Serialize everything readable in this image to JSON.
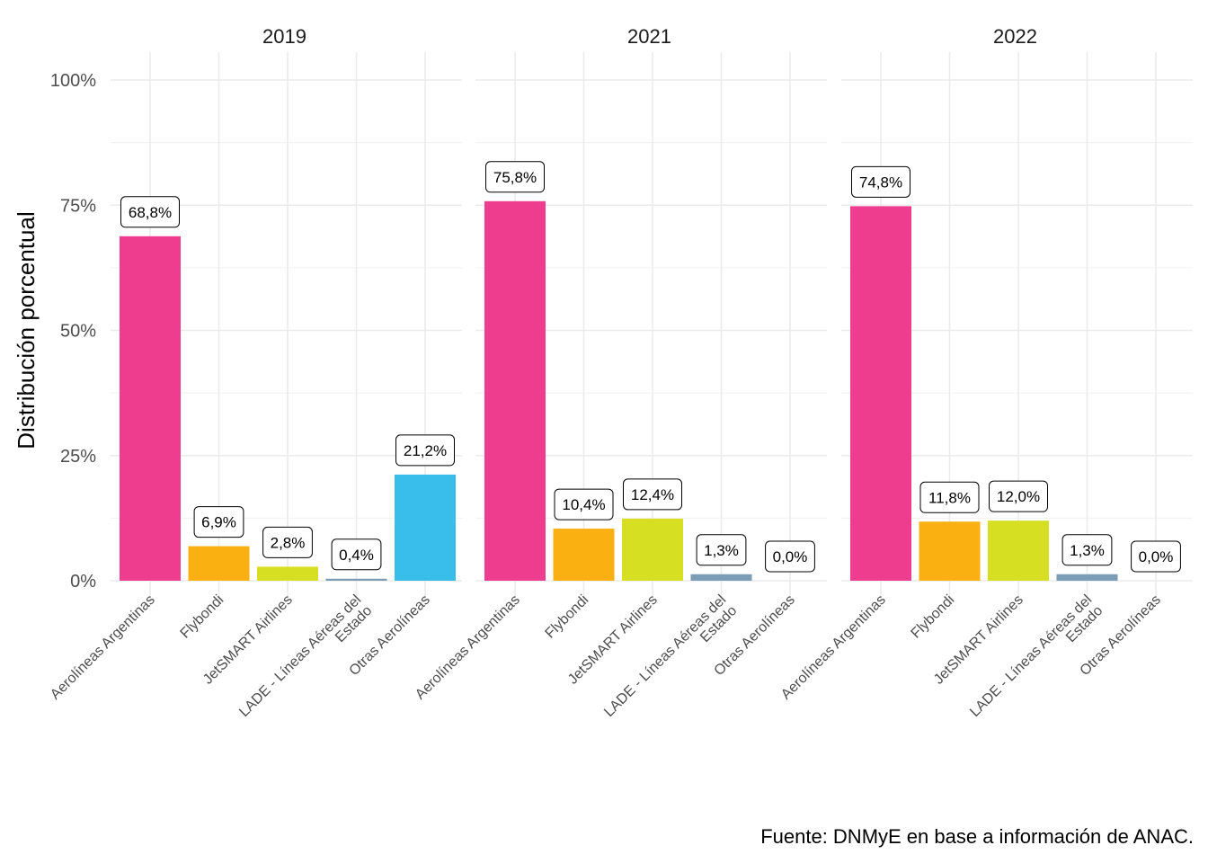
{
  "chart_data": {
    "type": "bar",
    "ylabel": "Distribución porcentual",
    "ylim": [
      0,
      100
    ],
    "yticks": [
      "0%",
      "25%",
      "50%",
      "75%",
      "100%"
    ],
    "categories": [
      "Aerolíneas Argentinas",
      "Flybondi",
      "JetSMART Airlines",
      "LADE - Líneas Aéreas del Estado",
      "Otras Aerolíneas"
    ],
    "colors": [
      "#EE3D8F",
      "#FBB012",
      "#D7DF23",
      "#7B9DB5",
      "#39BDEB"
    ],
    "facets": [
      {
        "name": "2019",
        "values": [
          68.8,
          6.9,
          2.8,
          0.4,
          21.2
        ],
        "labels": [
          "68,8%",
          "6,9%",
          "2,8%",
          "0,4%",
          "21,2%"
        ]
      },
      {
        "name": "2021",
        "values": [
          75.8,
          10.4,
          12.4,
          1.3,
          0.0
        ],
        "labels": [
          "75,8%",
          "10,4%",
          "12,4%",
          "1,3%",
          "0,0%"
        ]
      },
      {
        "name": "2022",
        "values": [
          74.8,
          11.8,
          12.0,
          1.3,
          0.0
        ],
        "labels": [
          "74,8%",
          "11,8%",
          "12,0%",
          "1,3%",
          "0,0%"
        ]
      }
    ],
    "grid": true
  },
  "caption": "Fuente: DNMyE en base a información de ANAC."
}
